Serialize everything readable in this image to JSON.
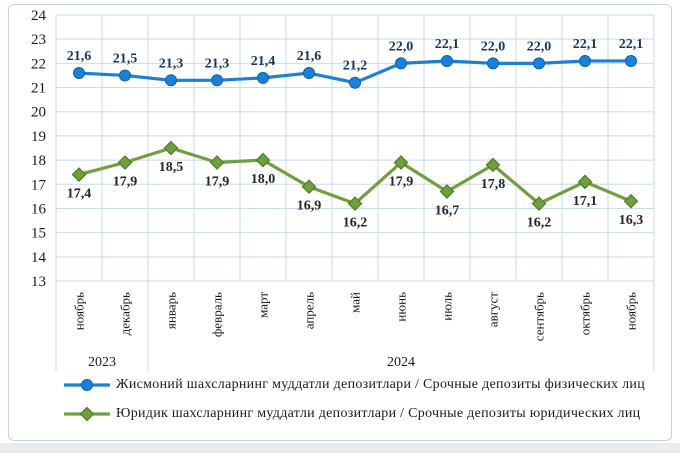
{
  "window": {
    "background": "#FFFFFF",
    "frame_border_color": "#C4D2E0",
    "bottom_strip_color": "#E9ECEF"
  },
  "chart_data": {
    "type": "line",
    "title": "",
    "categories": [
      "ноябрь",
      "декабрь",
      "январь",
      "февраль",
      "март",
      "апрель",
      "май",
      "июнь",
      "июль",
      "август",
      "сентябрь",
      "октябрь",
      "ноябрь"
    ],
    "year_groups": [
      {
        "label": "2023",
        "start": 0,
        "end": 1
      },
      {
        "label": "2024",
        "start": 2,
        "end": 12
      }
    ],
    "ylim": [
      13,
      24
    ],
    "y_ticks": [
      13,
      14,
      15,
      16,
      17,
      18,
      19,
      20,
      21,
      22,
      23,
      24
    ],
    "grid": true,
    "gridline_color": "#C9DBEC",
    "axis_text_color": "#1A1A1A",
    "decimal_separator": ",",
    "legend_position": "bottom-left",
    "series": [
      {
        "name": "Жисмоний шахсларнинг муддатли депозитлари / Срочные депозиты физических лиц",
        "marker": "circle",
        "color": "#1B80D8",
        "marker_border": "#0F62A8",
        "label_color": "#17365D",
        "label_position": "above",
        "values": [
          21.6,
          21.5,
          21.3,
          21.3,
          21.4,
          21.6,
          21.2,
          22.0,
          22.1,
          22.0,
          22.0,
          22.1,
          22.1
        ]
      },
      {
        "name": "Юридик шахсларнинг муддатли депозитлари / Срочные депозиты юридических лиц",
        "marker": "diamond",
        "color": "#6FA03D",
        "marker_border": "#4E7C26",
        "label_color": "#262626",
        "label_position": "below",
        "values": [
          17.4,
          17.9,
          18.5,
          17.9,
          18.0,
          16.9,
          16.2,
          17.9,
          16.7,
          17.8,
          16.2,
          17.1,
          16.3
        ]
      }
    ]
  }
}
